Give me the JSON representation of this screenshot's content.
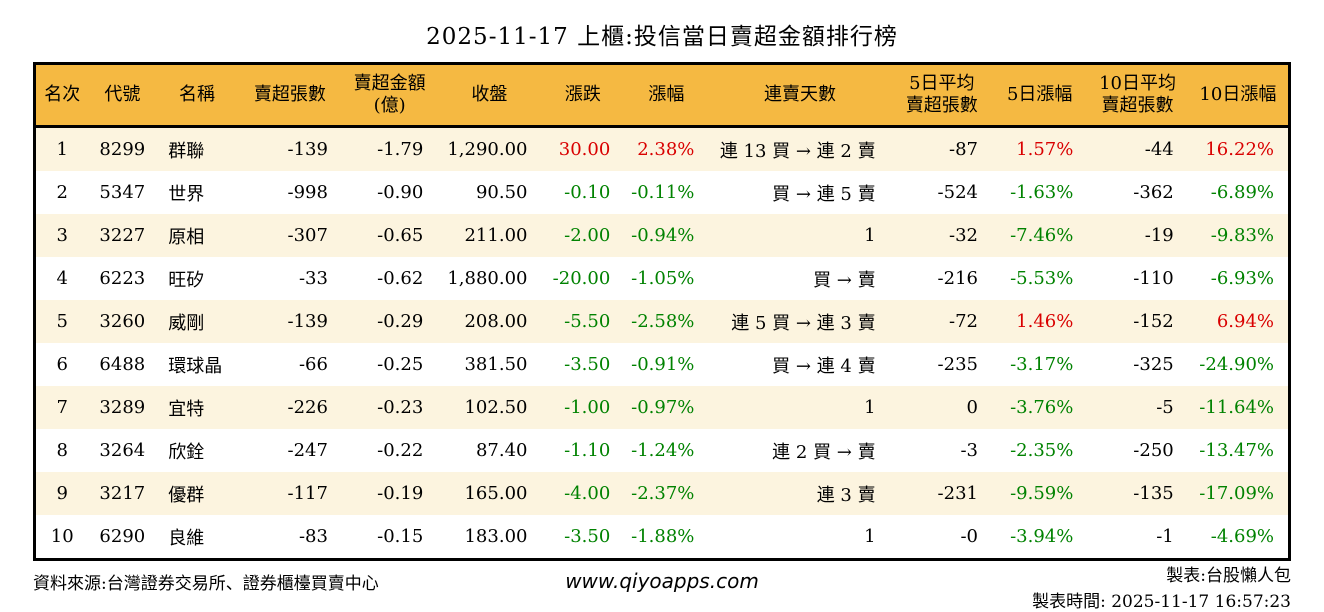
{
  "title": "2025-11-17 上櫃:投信當日賣超金額排行榜",
  "colors": {
    "header_bg": "#F5B942",
    "row_stripe": "#FCF4DF",
    "up": "#D90000",
    "down": "#008200",
    "border": "#000000"
  },
  "table": {
    "headers": [
      "名次",
      "代號",
      "名稱",
      "賣超張數",
      "賣超金額\n(億)",
      "收盤",
      "漲跌",
      "漲幅",
      "連賣天數",
      "5日平均\n賣超張數",
      "5日漲幅",
      "10日平均\n賣超張數",
      "10日漲幅"
    ],
    "keys": [
      "rank",
      "code",
      "name",
      "net-sell-volume",
      "net-sell-amount",
      "close",
      "change",
      "change-pct",
      "sell-streak",
      "avg5-net-sell",
      "pct-5d",
      "avg10-net-sell",
      "pct-10d"
    ],
    "colored_columns": [
      6,
      7,
      10,
      12
    ],
    "rows": [
      {
        "cells": [
          "1",
          "8299",
          "群聯",
          "-139",
          "-1.79",
          "1,290.00",
          "30.00",
          "2.38%",
          "連 13 買 → 連 2 賣",
          "-87",
          "1.57%",
          "-44",
          "16.22%"
        ]
      },
      {
        "cells": [
          "2",
          "5347",
          "世界",
          "-998",
          "-0.90",
          "90.50",
          "-0.10",
          "-0.11%",
          "買 → 連 5 賣",
          "-524",
          "-1.63%",
          "-362",
          "-6.89%"
        ]
      },
      {
        "cells": [
          "3",
          "3227",
          "原相",
          "-307",
          "-0.65",
          "211.00",
          "-2.00",
          "-0.94%",
          "1",
          "-32",
          "-7.46%",
          "-19",
          "-9.83%"
        ]
      },
      {
        "cells": [
          "4",
          "6223",
          "旺矽",
          "-33",
          "-0.62",
          "1,880.00",
          "-20.00",
          "-1.05%",
          "買 → 賣",
          "-216",
          "-5.53%",
          "-110",
          "-6.93%"
        ]
      },
      {
        "cells": [
          "5",
          "3260",
          "威剛",
          "-139",
          "-0.29",
          "208.00",
          "-5.50",
          "-2.58%",
          "連 5 買 → 連 3 賣",
          "-72",
          "1.46%",
          "-152",
          "6.94%"
        ]
      },
      {
        "cells": [
          "6",
          "6488",
          "環球晶",
          "-66",
          "-0.25",
          "381.50",
          "-3.50",
          "-0.91%",
          "買 → 連 4 賣",
          "-235",
          "-3.17%",
          "-325",
          "-24.90%"
        ]
      },
      {
        "cells": [
          "7",
          "3289",
          "宜特",
          "-226",
          "-0.23",
          "102.50",
          "-1.00",
          "-0.97%",
          "1",
          "0",
          "-3.76%",
          "-5",
          "-11.64%"
        ]
      },
      {
        "cells": [
          "8",
          "3264",
          "欣銓",
          "-247",
          "-0.22",
          "87.40",
          "-1.10",
          "-1.24%",
          "連 2 買 → 賣",
          "-3",
          "-2.35%",
          "-250",
          "-13.47%"
        ]
      },
      {
        "cells": [
          "9",
          "3217",
          "優群",
          "-117",
          "-0.19",
          "165.00",
          "-4.00",
          "-2.37%",
          "連 3 賣",
          "-231",
          "-9.59%",
          "-135",
          "-17.09%"
        ]
      },
      {
        "cells": [
          "10",
          "6290",
          "良維",
          "-83",
          "-0.15",
          "183.00",
          "-3.50",
          "-1.88%",
          "1",
          "-0",
          "-3.94%",
          "-1",
          "-4.69%"
        ]
      }
    ]
  },
  "footer": {
    "source": "資料來源:台灣證券交易所、證券櫃檯買賣中心",
    "website": "www.qiyoapps.com",
    "maker": "製表:台股懶人包",
    "made_time": "製表時間: 2025-11-17 16:57:23"
  }
}
